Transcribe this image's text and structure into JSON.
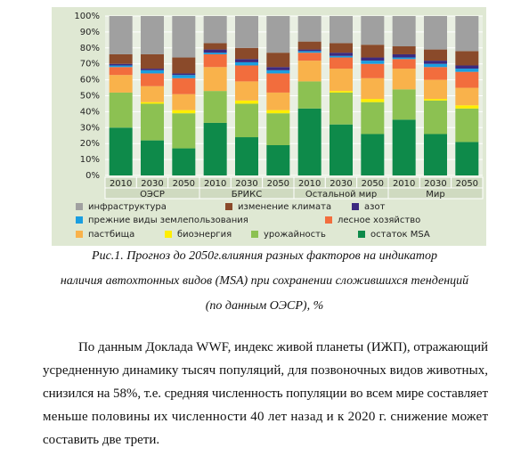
{
  "chart_data": {
    "type": "stacked_bar",
    "categories": [
      "2010",
      "2030",
      "2050",
      "2010",
      "2030",
      "2050",
      "2010",
      "2030",
      "2050",
      "2010",
      "2030",
      "2050"
    ],
    "groups": [
      "ОЭСР",
      "БРИКС",
      "Остальной мир",
      "Мир"
    ],
    "series": [
      {
        "name": "остаток MSA",
        "color": "#0e8a4a",
        "values": [
          30,
          22,
          17,
          33,
          24,
          19,
          42,
          32,
          26,
          35,
          26,
          21
        ]
      },
      {
        "name": "урожайность",
        "color": "#8cc152",
        "values": [
          22,
          23,
          22,
          20,
          21,
          20,
          17,
          20,
          20,
          19,
          21,
          21
        ]
      },
      {
        "name": "биоэнергия",
        "color": "#ffee00",
        "values": [
          0,
          1,
          2,
          0,
          2,
          2,
          0,
          1,
          2,
          0,
          1,
          2
        ]
      },
      {
        "name": "пастбища",
        "color": "#f9b24b",
        "values": [
          11,
          10,
          10,
          15,
          12,
          11,
          13,
          14,
          13,
          13,
          12,
          11
        ]
      },
      {
        "name": "лесное хозяйство",
        "color": "#f26d3d",
        "values": [
          5,
          8,
          10,
          8,
          10,
          12,
          5,
          7,
          9,
          6,
          8,
          10
        ]
      },
      {
        "name": "прежние виды землепользования",
        "color": "#1a9ee0",
        "values": [
          1,
          2,
          2,
          1,
          2,
          2,
          1,
          1,
          2,
          1,
          2,
          2
        ]
      },
      {
        "name": "азот",
        "color": "#3c2a80",
        "values": [
          1,
          1,
          1,
          2,
          2,
          2,
          1,
          2,
          2,
          2,
          2,
          2
        ]
      },
      {
        "name": "изменение климата",
        "color": "#8a4a2a",
        "values": [
          6,
          9,
          10,
          4,
          7,
          9,
          5,
          6,
          8,
          5,
          7,
          9
        ]
      },
      {
        "name": "инфраструктура",
        "color": "#a0a0a0",
        "values": [
          24,
          24,
          26,
          17,
          20,
          23,
          16,
          17,
          18,
          19,
          21,
          22
        ]
      }
    ],
    "ylim": [
      0,
      100
    ],
    "yticks": [
      {
        "value": 0,
        "label": "0%"
      },
      {
        "value": 10,
        "label": "10%"
      },
      {
        "value": 20,
        "label": "20%"
      },
      {
        "value": 30,
        "label": "30%"
      },
      {
        "value": 40,
        "label": "40%"
      },
      {
        "value": 50,
        "label": "50%"
      },
      {
        "value": 60,
        "label": "60%"
      },
      {
        "value": 70,
        "label": "70%"
      },
      {
        "value": 80,
        "label": "80%"
      },
      {
        "value": 90,
        "label": "90%"
      },
      {
        "value": 100,
        "label": "100%"
      }
    ],
    "grid": true
  },
  "caption": [
    "Рис.1. Прогноз до 2050г.влияния разных факторов на индикатор",
    "наличия автохтонных видов (MSA) при сохранении сложившихся тенденций",
    "(по данным ОЭСР), %"
  ],
  "paragraph": [
    "По данным Доклада WWF, индекс живой планеты (ИЖП), отражающий",
    "усредненную динамику тысяч популяций, для позвоночных видов животных,",
    "снизился на 58%, т.е. средняя численность популяции во всем мире составляет",
    "меньше половины их численности 40 лет назад и к 2020 г. снижение может",
    "составить две трети."
  ]
}
